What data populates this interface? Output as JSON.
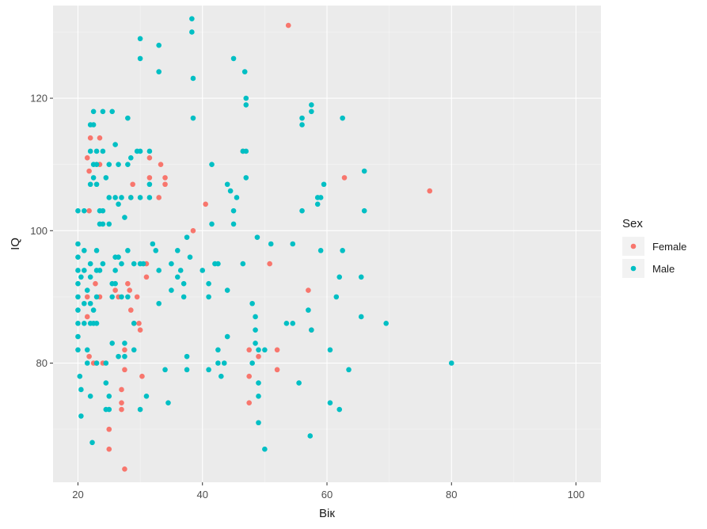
{
  "chart_data": {
    "type": "scatter",
    "xlabel": "Вік",
    "ylabel": "IQ",
    "xlim": [
      16,
      104
    ],
    "ylim": [
      62,
      134
    ],
    "x_ticks": [
      20,
      40,
      60,
      80,
      100
    ],
    "x_minor": [
      30,
      50,
      70,
      90
    ],
    "y_ticks": [
      80,
      100,
      120
    ],
    "y_minor": [
      70,
      90,
      110,
      130
    ],
    "grid": true,
    "legend": {
      "title": "Sex",
      "placement": "right"
    },
    "series": [
      {
        "name": "Female",
        "color": "#F8766D",
        "points": [
          [
            21.5,
            111
          ],
          [
            22,
            114
          ],
          [
            21.8,
            109
          ],
          [
            21.8,
            103
          ],
          [
            21.5,
            90
          ],
          [
            21.5,
            87
          ],
          [
            21.8,
            81
          ],
          [
            22.5,
            80
          ],
          [
            22.8,
            92
          ],
          [
            23,
            80
          ],
          [
            23.5,
            110
          ],
          [
            23.5,
            114
          ],
          [
            23.5,
            90
          ],
          [
            24,
            80
          ],
          [
            25,
            70
          ],
          [
            25,
            67
          ],
          [
            26,
            91
          ],
          [
            26.5,
            90
          ],
          [
            27,
            76
          ],
          [
            27,
            74
          ],
          [
            27,
            73
          ],
          [
            27.5,
            64
          ],
          [
            27.5,
            79
          ],
          [
            27.5,
            82
          ],
          [
            28,
            92
          ],
          [
            28.3,
            91
          ],
          [
            28.5,
            88
          ],
          [
            28.5,
            105
          ],
          [
            28.8,
            107
          ],
          [
            29,
            86
          ],
          [
            29.5,
            90
          ],
          [
            29.8,
            86
          ],
          [
            30,
            85
          ],
          [
            30.3,
            78
          ],
          [
            31,
            93
          ],
          [
            31,
            95
          ],
          [
            31.5,
            111
          ],
          [
            31.5,
            108
          ],
          [
            33,
            105
          ],
          [
            33.3,
            110
          ],
          [
            34,
            108
          ],
          [
            34,
            107
          ],
          [
            38.5,
            100
          ],
          [
            40.5,
            104
          ],
          [
            46.5,
            112
          ],
          [
            47.5,
            82
          ],
          [
            47.5,
            78
          ],
          [
            47.5,
            74
          ],
          [
            49,
            81
          ],
          [
            50.8,
            95
          ],
          [
            52,
            82
          ],
          [
            52,
            79
          ],
          [
            53.8,
            131
          ],
          [
            57,
            91
          ],
          [
            57.5,
            85
          ],
          [
            62.8,
            108
          ],
          [
            76.5,
            106
          ]
        ]
      },
      {
        "name": "Male",
        "color": "#00BFC4",
        "points": [
          [
            20,
            103
          ],
          [
            20,
            98
          ],
          [
            20,
            96
          ],
          [
            20,
            94
          ],
          [
            20,
            92
          ],
          [
            20,
            90
          ],
          [
            20,
            88
          ],
          [
            20,
            86
          ],
          [
            20,
            84
          ],
          [
            20,
            82
          ],
          [
            20.3,
            78
          ],
          [
            20.5,
            76
          ],
          [
            20.5,
            72
          ],
          [
            20.5,
            93
          ],
          [
            21,
            103
          ],
          [
            21,
            97
          ],
          [
            21,
            94
          ],
          [
            21,
            89
          ],
          [
            21,
            86
          ],
          [
            21.5,
            91
          ],
          [
            21.5,
            82
          ],
          [
            21.5,
            80
          ],
          [
            22,
            116
          ],
          [
            22,
            112
          ],
          [
            22,
            107
          ],
          [
            22,
            95
          ],
          [
            22,
            93
          ],
          [
            22,
            89
          ],
          [
            22,
            86
          ],
          [
            22,
            75
          ],
          [
            22.3,
            68
          ],
          [
            22.5,
            118
          ],
          [
            22.5,
            116
          ],
          [
            22.5,
            110
          ],
          [
            22.5,
            108
          ],
          [
            22.5,
            88
          ],
          [
            22.5,
            86
          ],
          [
            23,
            112
          ],
          [
            23,
            110
          ],
          [
            23,
            107
          ],
          [
            23,
            97
          ],
          [
            23,
            94
          ],
          [
            23,
            90
          ],
          [
            23,
            86
          ],
          [
            23,
            80
          ],
          [
            23.5,
            103
          ],
          [
            23.5,
            101
          ],
          [
            23.5,
            94
          ],
          [
            24,
            118
          ],
          [
            24,
            112
          ],
          [
            24,
            103
          ],
          [
            24,
            101
          ],
          [
            24,
            95
          ],
          [
            24.5,
            108
          ],
          [
            24.5,
            80
          ],
          [
            24.5,
            77
          ],
          [
            24.5,
            73
          ],
          [
            25,
            110
          ],
          [
            25,
            105
          ],
          [
            25,
            101
          ],
          [
            25,
            75
          ],
          [
            25,
            73
          ],
          [
            25.5,
            118
          ],
          [
            25.5,
            92
          ],
          [
            25.5,
            90
          ],
          [
            25.5,
            83
          ],
          [
            26,
            113
          ],
          [
            26,
            105
          ],
          [
            26,
            96
          ],
          [
            26,
            94
          ],
          [
            26,
            92
          ],
          [
            26.5,
            110
          ],
          [
            26.5,
            104
          ],
          [
            26.5,
            96
          ],
          [
            26.5,
            81
          ],
          [
            27,
            105
          ],
          [
            27,
            95
          ],
          [
            27,
            90
          ],
          [
            27.5,
            102
          ],
          [
            27.5,
            83
          ],
          [
            27.5,
            81
          ],
          [
            28,
            117
          ],
          [
            28,
            110
          ],
          [
            28,
            97
          ],
          [
            28,
            90
          ],
          [
            28.5,
            111
          ],
          [
            28.5,
            105
          ],
          [
            29,
            95
          ],
          [
            29,
            86
          ],
          [
            29,
            82
          ],
          [
            29.5,
            112
          ],
          [
            30,
            129
          ],
          [
            30,
            126
          ],
          [
            30,
            112
          ],
          [
            30,
            105
          ],
          [
            30,
            95
          ],
          [
            30,
            73
          ],
          [
            30.5,
            95
          ],
          [
            31,
            75
          ],
          [
            31.5,
            112
          ],
          [
            31.5,
            107
          ],
          [
            31.5,
            105
          ],
          [
            32,
            98
          ],
          [
            32.5,
            97
          ],
          [
            33,
            128
          ],
          [
            33,
            124
          ],
          [
            33,
            94
          ],
          [
            33,
            89
          ],
          [
            34,
            79
          ],
          [
            34.5,
            74
          ],
          [
            35,
            91
          ],
          [
            35,
            95
          ],
          [
            36,
            97
          ],
          [
            36,
            93
          ],
          [
            36.5,
            94
          ],
          [
            37,
            90
          ],
          [
            37,
            92
          ],
          [
            37.5,
            99
          ],
          [
            37.5,
            81
          ],
          [
            37.5,
            79
          ],
          [
            38,
            96
          ],
          [
            38.3,
            130
          ],
          [
            38.3,
            132
          ],
          [
            38.5,
            117
          ],
          [
            38.5,
            123
          ],
          [
            40,
            94
          ],
          [
            41,
            79
          ],
          [
            41,
            90
          ],
          [
            41,
            92
          ],
          [
            41.5,
            101
          ],
          [
            41.5,
            110
          ],
          [
            42,
            95
          ],
          [
            42.5,
            95
          ],
          [
            42.5,
            82
          ],
          [
            42.5,
            80
          ],
          [
            43,
            78
          ],
          [
            43.5,
            80
          ],
          [
            44,
            84
          ],
          [
            44,
            91
          ],
          [
            44,
            107
          ],
          [
            44.5,
            106
          ],
          [
            45,
            126
          ],
          [
            45,
            103
          ],
          [
            45,
            101
          ],
          [
            45.5,
            105
          ],
          [
            46.5,
            95
          ],
          [
            46.5,
            112
          ],
          [
            46.8,
            124
          ],
          [
            47,
            120
          ],
          [
            47,
            119
          ],
          [
            47,
            112
          ],
          [
            47,
            108
          ],
          [
            48,
            89
          ],
          [
            48,
            80
          ],
          [
            48.5,
            83
          ],
          [
            48.5,
            85
          ],
          [
            48.5,
            87
          ],
          [
            48.8,
            99
          ],
          [
            49,
            82
          ],
          [
            49,
            77
          ],
          [
            49,
            75
          ],
          [
            49,
            71
          ],
          [
            50,
            82
          ],
          [
            50,
            67
          ],
          [
            51,
            98
          ],
          [
            53.5,
            86
          ],
          [
            54.5,
            86
          ],
          [
            54.5,
            98
          ],
          [
            55.5,
            77
          ],
          [
            56,
            116
          ],
          [
            56,
            117
          ],
          [
            56,
            103
          ],
          [
            57,
            88
          ],
          [
            57.3,
            69
          ],
          [
            57.5,
            119
          ],
          [
            57.5,
            118
          ],
          [
            57.5,
            85
          ],
          [
            58.5,
            104
          ],
          [
            58.5,
            105
          ],
          [
            59,
            97
          ],
          [
            59,
            105
          ],
          [
            59.5,
            107
          ],
          [
            60.5,
            82
          ],
          [
            60.5,
            74
          ],
          [
            61.5,
            90
          ],
          [
            62,
            93
          ],
          [
            62,
            73
          ],
          [
            62.5,
            117
          ],
          [
            62.5,
            97
          ],
          [
            63.5,
            79
          ],
          [
            65.5,
            93
          ],
          [
            65.5,
            87
          ],
          [
            66,
            109
          ],
          [
            66,
            103
          ],
          [
            69.5,
            86
          ],
          [
            80,
            80
          ]
        ]
      }
    ]
  }
}
